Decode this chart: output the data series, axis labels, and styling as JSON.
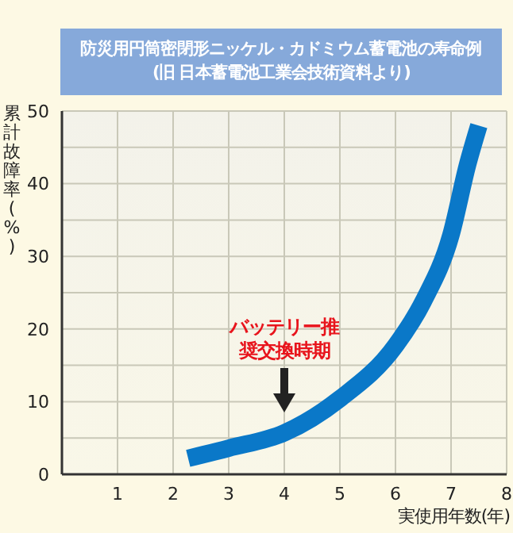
{
  "chart_data": {
    "type": "line",
    "title": "防災用円筒密閉形ニッケル・カドミウム蓄電池の寿命例\n(旧 日本蓄電池工業会技術資料より)",
    "xlabel": "実使用年数(年)",
    "ylabel": "累計故障率(%)",
    "x": [
      2.27,
      3,
      4,
      5,
      6,
      6.5,
      7,
      7.3,
      7.5
    ],
    "series": [
      {
        "color": "#0a78c8",
        "values": [
          2.2,
          3.6,
          5.7,
          10.4,
          17.7,
          23.8,
          33,
          42.7,
          48
        ]
      }
    ],
    "xlim": [
      0,
      8
    ],
    "xticks": [
      1,
      2,
      3,
      4,
      5,
      6,
      7,
      8
    ],
    "ylim": [
      0,
      50
    ],
    "yticks": [
      0,
      {
        "value": 5,
        "label": null
      },
      10,
      {
        "value": 15,
        "label": null
      },
      20,
      {
        "value": 25,
        "label": null
      },
      30,
      {
        "value": 35,
        "label": null
      },
      40,
      {
        "value": 45,
        "label": null
      },
      50
    ],
    "grid": true,
    "marker": "none",
    "line_style": "solid",
    "annotations": [
      "バッテリー推奨交換時期"
    ]
  }
}
